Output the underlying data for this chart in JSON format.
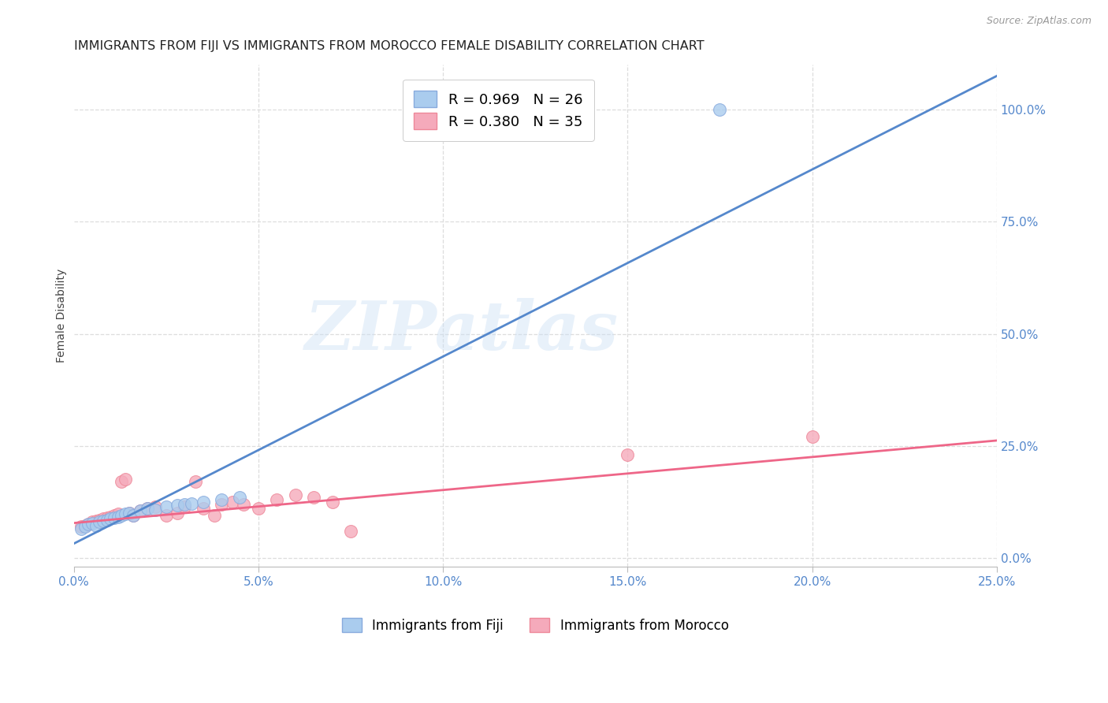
{
  "title": "IMMIGRANTS FROM FIJI VS IMMIGRANTS FROM MOROCCO FEMALE DISABILITY CORRELATION CHART",
  "source": "Source: ZipAtlas.com",
  "xlabel": "",
  "ylabel": "Female Disability",
  "xlim": [
    0.0,
    0.25
  ],
  "ylim": [
    -0.02,
    1.1
  ],
  "ytick_labels": [
    "0.0%",
    "25.0%",
    "50.0%",
    "75.0%",
    "100.0%"
  ],
  "ytick_vals": [
    0.0,
    0.25,
    0.5,
    0.75,
    1.0
  ],
  "xtick_labels": [
    "0.0%",
    "5.0%",
    "10.0%",
    "15.0%",
    "20.0%",
    "25.0%"
  ],
  "xtick_vals": [
    0.0,
    0.05,
    0.1,
    0.15,
    0.2,
    0.25
  ],
  "fiji_color": "#aaccee",
  "fiji_edge_color": "#88aadd",
  "fiji_line_color": "#5588cc",
  "morocco_color": "#f5aabb",
  "morocco_edge_color": "#ee8899",
  "morocco_line_color": "#ee6688",
  "legend_label_fiji": "R = 0.969   N = 26",
  "legend_label_morocco": "R = 0.380   N = 35",
  "legend_label_fiji_bottom": "Immigrants from Fiji",
  "legend_label_morocco_bottom": "Immigrants from Morocco",
  "fiji_x": [
    0.002,
    0.003,
    0.004,
    0.005,
    0.006,
    0.007,
    0.008,
    0.009,
    0.01,
    0.011,
    0.012,
    0.013,
    0.014,
    0.015,
    0.016,
    0.018,
    0.02,
    0.022,
    0.025,
    0.028,
    0.03,
    0.032,
    0.035,
    0.04,
    0.045,
    0.175
  ],
  "fiji_y": [
    0.065,
    0.07,
    0.075,
    0.078,
    0.072,
    0.08,
    0.082,
    0.085,
    0.088,
    0.09,
    0.092,
    0.095,
    0.098,
    0.1,
    0.095,
    0.105,
    0.11,
    0.108,
    0.115,
    0.118,
    0.12,
    0.122,
    0.125,
    0.13,
    0.135,
    1.0
  ],
  "morocco_x": [
    0.002,
    0.003,
    0.004,
    0.005,
    0.006,
    0.007,
    0.008,
    0.009,
    0.01,
    0.011,
    0.012,
    0.013,
    0.014,
    0.015,
    0.016,
    0.018,
    0.02,
    0.022,
    0.025,
    0.028,
    0.03,
    0.033,
    0.035,
    0.038,
    0.04,
    0.043,
    0.046,
    0.05,
    0.055,
    0.06,
    0.065,
    0.07,
    0.075,
    0.15,
    0.2
  ],
  "morocco_y": [
    0.07,
    0.072,
    0.075,
    0.08,
    0.082,
    0.085,
    0.088,
    0.09,
    0.092,
    0.095,
    0.098,
    0.17,
    0.175,
    0.1,
    0.095,
    0.105,
    0.11,
    0.115,
    0.095,
    0.1,
    0.115,
    0.17,
    0.11,
    0.095,
    0.12,
    0.125,
    0.12,
    0.11,
    0.13,
    0.14,
    0.135,
    0.125,
    0.06,
    0.23,
    0.27
  ],
  "fiji_line_x": [
    0.0,
    0.25
  ],
  "fiji_line_y": [
    0.032,
    1.075
  ],
  "morocco_line_x": [
    0.0,
    0.25
  ],
  "morocco_line_y": [
    0.078,
    0.262
  ],
  "watermark_text": "ZIPatlas",
  "background_color": "#ffffff",
  "grid_color": "#dddddd",
  "axis_label_color": "#5588cc",
  "title_color": "#222222"
}
